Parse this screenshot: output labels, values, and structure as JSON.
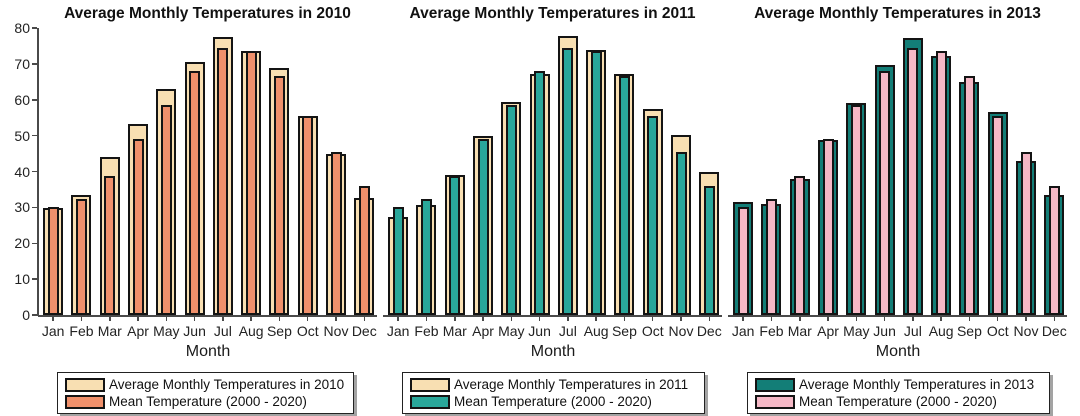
{
  "page": {
    "background": "#ffffff"
  },
  "colors": {
    "wheat": "#F8DFB2",
    "salmon": "#F0906B",
    "teal": "#29A79A",
    "dark_teal": "#137E77",
    "pink": "#F5B8C6",
    "bar_border": "#141414",
    "axis": "#4a4a4a"
  },
  "chart_data": [
    {
      "type": "bar",
      "title": "Average Monthly Temperatures in 2010",
      "xlabel": "Month",
      "ylim": [
        0,
        80
      ],
      "yticks": [
        0,
        10,
        20,
        30,
        40,
        50,
        60,
        70,
        80
      ],
      "show_y_axis": true,
      "grid": false,
      "legend_position": "bottom",
      "categories": [
        "Jan",
        "Feb",
        "Mar",
        "Apr",
        "May",
        "Jun",
        "Jul",
        "Aug",
        "Sep",
        "Oct",
        "Nov",
        "Dec"
      ],
      "series": [
        {
          "name": "Average Monthly Temperatures in 2010",
          "color": "#F8DFB2",
          "values": [
            29.7,
            33.4,
            44.1,
            53.2,
            63.0,
            70.5,
            77.5,
            73.7,
            68.8,
            55.6,
            44.9,
            32.7
          ]
        },
        {
          "name": "Mean Temperature (2000 - 2020)",
          "color": "#F0906B",
          "values": [
            30.2,
            32.3,
            38.8,
            49.0,
            58.6,
            68.0,
            74.5,
            73.7,
            66.5,
            55.6,
            45.4,
            36.0
          ]
        }
      ]
    },
    {
      "type": "bar",
      "title": "Average Monthly Temperatures in 2011",
      "xlabel": "Month",
      "ylim": [
        0,
        80
      ],
      "yticks": [
        0,
        10,
        20,
        30,
        40,
        50,
        60,
        70,
        80
      ],
      "show_y_axis": false,
      "grid": false,
      "legend_position": "bottom",
      "categories": [
        "Jan",
        "Feb",
        "Mar",
        "Apr",
        "May",
        "Jun",
        "Jul",
        "Aug",
        "Sep",
        "Oct",
        "Nov",
        "Dec"
      ],
      "series": [
        {
          "name": "Average Monthly Temperatures in 2011",
          "color": "#F8DFB2",
          "values": [
            27.3,
            30.8,
            39.0,
            50.0,
            59.3,
            67.2,
            77.7,
            74.0,
            67.3,
            57.5,
            50.3,
            40.0
          ]
        },
        {
          "name": "Mean Temperature (2000 - 2020)",
          "color": "#29A79A",
          "values": [
            30.2,
            32.3,
            38.8,
            49.0,
            58.6,
            68.0,
            74.5,
            73.7,
            66.5,
            55.6,
            45.4,
            36.0
          ]
        }
      ]
    },
    {
      "type": "bar",
      "title": "Average Monthly Temperatures in 2013",
      "xlabel": "Month",
      "ylim": [
        0,
        80
      ],
      "yticks": [
        0,
        10,
        20,
        30,
        40,
        50,
        60,
        70,
        80
      ],
      "show_y_axis": false,
      "grid": false,
      "legend_position": "bottom",
      "categories": [
        "Jan",
        "Feb",
        "Mar",
        "Apr",
        "May",
        "Jun",
        "Jul",
        "Aug",
        "Sep",
        "Oct",
        "Nov",
        "Dec"
      ],
      "series": [
        {
          "name": "Average Monthly Temperatures in 2013",
          "color": "#137E77",
          "values": [
            31.4,
            31.0,
            37.9,
            48.8,
            59.0,
            69.8,
            77.2,
            72.2,
            65.0,
            56.6,
            42.8,
            33.5
          ]
        },
        {
          "name": "Mean Temperature (2000 - 2020)",
          "color": "#F5B8C6",
          "values": [
            30.2,
            32.3,
            38.8,
            49.0,
            58.6,
            68.0,
            74.5,
            73.7,
            66.5,
            55.6,
            45.4,
            36.0
          ]
        }
      ]
    }
  ]
}
